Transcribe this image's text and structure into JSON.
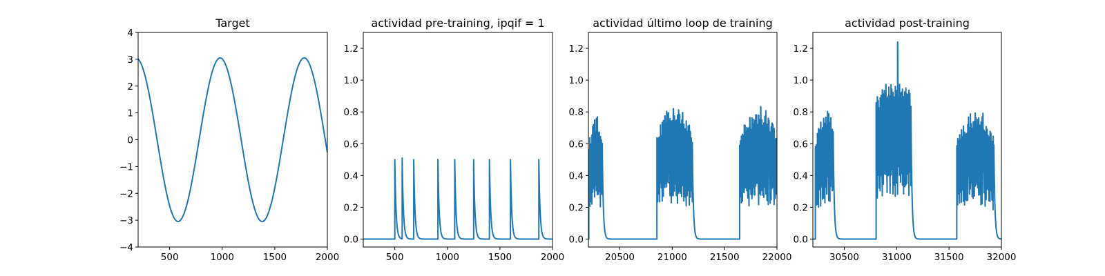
{
  "chart_data": [
    {
      "type": "line",
      "title": "Target",
      "xlim": [
        200,
        2000
      ],
      "ylim": [
        -4,
        4
      ],
      "xticks": [
        "500",
        "1000",
        "1500",
        "2000"
      ],
      "yticks": [
        "4",
        "3",
        "2",
        "1",
        "0",
        "−1",
        "−2",
        "−3",
        "−4"
      ],
      "curve": {
        "kind": "cosine",
        "amplitude": 3.05,
        "period": 800,
        "phase_x": 180
      },
      "series_color": "#1f77b4"
    },
    {
      "type": "line",
      "title": "actividad pre-training, ipqif = 1",
      "xlim": [
        200,
        2000
      ],
      "ylim": [
        -0.05,
        1.3
      ],
      "xticks": [
        "500",
        "1000",
        "1500",
        "2000"
      ],
      "yticks": [
        "1.2",
        "1.0",
        "0.8",
        "0.6",
        "0.4",
        "0.2",
        "0.0"
      ],
      "spikes": [
        {
          "x": 500,
          "peak": 0.5
        },
        {
          "x": 570,
          "peak": 0.51
        },
        {
          "x": 680,
          "peak": 0.5
        },
        {
          "x": 910,
          "peak": 0.5
        },
        {
          "x": 1070,
          "peak": 0.5
        },
        {
          "x": 1250,
          "peak": 0.5
        },
        {
          "x": 1400,
          "peak": 0.5
        },
        {
          "x": 1600,
          "peak": 0.5
        },
        {
          "x": 1870,
          "peak": 0.5
        }
      ],
      "series_color": "#1f77b4"
    },
    {
      "type": "line",
      "title": "actividad último loop de training",
      "xlim": [
        20200,
        22000
      ],
      "ylim": [
        -0.05,
        1.3
      ],
      "xticks": [
        "20500",
        "21000",
        "21500",
        "22000"
      ],
      "yticks": [
        "1.2",
        "1.0",
        "0.8",
        "0.6",
        "0.4",
        "0.2",
        "0.0"
      ],
      "bursts": [
        {
          "start": 20200,
          "end": 20340,
          "max_peak": 0.78
        },
        {
          "start": 20850,
          "end": 21200,
          "max_peak": 0.86
        },
        {
          "start": 21640,
          "end": 22000,
          "max_peak": 0.84
        }
      ],
      "series_color": "#1f77b4"
    },
    {
      "type": "line",
      "title": "actividad post-training",
      "xlim": [
        30200,
        32000
      ],
      "ylim": [
        -0.05,
        1.3
      ],
      "xticks": [
        "30500",
        "31000",
        "31500",
        "32000"
      ],
      "yticks": [
        "1.2",
        "1.0",
        "0.8",
        "0.6",
        "0.4",
        "0.2",
        "0.0"
      ],
      "bursts": [
        {
          "start": 30220,
          "end": 30400,
          "max_peak": 0.82
        },
        {
          "start": 30800,
          "end": 31140,
          "max_peak": 1.24
        },
        {
          "start": 31570,
          "end": 31930,
          "max_peak": 0.82
        }
      ],
      "series_color": "#1f77b4"
    }
  ]
}
